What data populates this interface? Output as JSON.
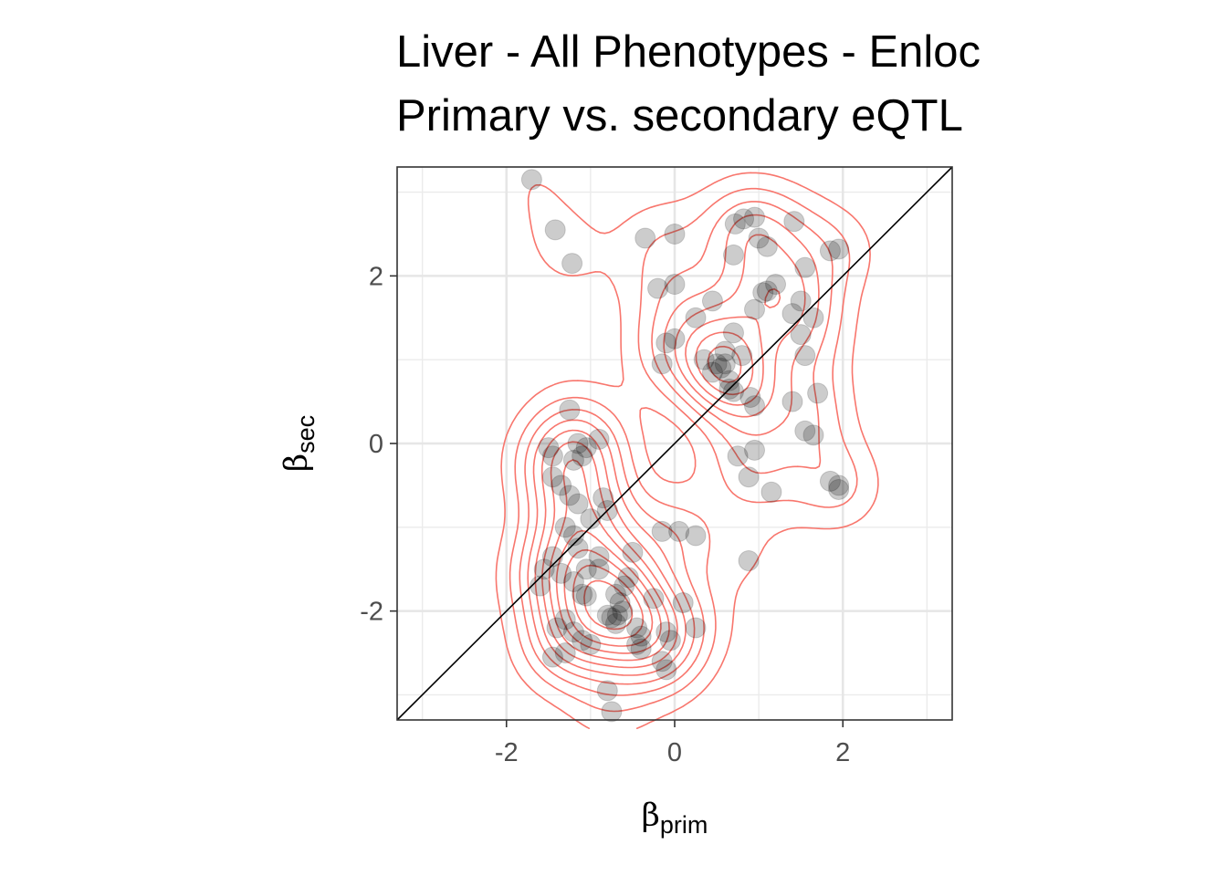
{
  "chart_data": {
    "type": "scatter",
    "title": [
      "Liver - All Phenotypes - Enloc",
      "Primary vs. secondary eQTL"
    ],
    "xlabel": {
      "symbol": "β",
      "subscript": "prim"
    },
    "ylabel": {
      "symbol": "β",
      "subscript": "sec"
    },
    "xlim": [
      -3.3,
      3.3
    ],
    "ylim": [
      -3.3,
      3.3
    ],
    "x_ticks": [
      -2,
      0,
      2
    ],
    "y_ticks": [
      -2,
      0,
      2
    ],
    "x_tick_labels": [
      "-2",
      "0",
      "2"
    ],
    "y_tick_labels": [
      "-2",
      "0",
      "2"
    ],
    "grid": true,
    "reference_line": {
      "type": "identity",
      "color": "#000000"
    },
    "point_color": "#000000",
    "point_opacity": 0.2,
    "contour_color": "#f8766d",
    "contour_overlay": "2D kernel density estimate of the points",
    "points": [
      [
        -1.7,
        3.15
      ],
      [
        -1.42,
        2.55
      ],
      [
        -1.22,
        2.15
      ],
      [
        -0.35,
        2.45
      ],
      [
        0.0,
        2.5
      ],
      [
        0.72,
        2.62
      ],
      [
        0.82,
        2.68
      ],
      [
        0.95,
        2.7
      ],
      [
        1.42,
        2.65
      ],
      [
        1.0,
        2.45
      ],
      [
        1.1,
        2.35
      ],
      [
        0.7,
        2.25
      ],
      [
        1.85,
        2.3
      ],
      [
        1.95,
        2.32
      ],
      [
        1.55,
        2.1
      ],
      [
        1.2,
        1.9
      ],
      [
        1.1,
        1.82
      ],
      [
        1.05,
        1.8
      ],
      [
        0.95,
        1.6
      ],
      [
        1.5,
        1.7
      ],
      [
        1.65,
        1.5
      ],
      [
        1.4,
        1.55
      ],
      [
        -0.2,
        1.85
      ],
      [
        0.0,
        1.9
      ],
      [
        0.25,
        1.5
      ],
      [
        0.45,
        1.7
      ],
      [
        0.7,
        1.32
      ],
      [
        0.6,
        1.1
      ],
      [
        0.8,
        1.05
      ],
      [
        0.0,
        1.25
      ],
      [
        -0.1,
        1.2
      ],
      [
        -0.15,
        0.95
      ],
      [
        0.35,
        1.0
      ],
      [
        0.5,
        0.95
      ],
      [
        0.55,
        0.9
      ],
      [
        0.6,
        0.95
      ],
      [
        0.45,
        0.85
      ],
      [
        0.65,
        0.75
      ],
      [
        0.65,
        0.65
      ],
      [
        0.7,
        0.62
      ],
      [
        0.9,
        0.55
      ],
      [
        0.95,
        0.45
      ],
      [
        1.55,
        1.05
      ],
      [
        1.5,
        1.3
      ],
      [
        1.4,
        0.5
      ],
      [
        1.55,
        0.15
      ],
      [
        1.65,
        0.1
      ],
      [
        1.7,
        0.6
      ],
      [
        1.85,
        -0.45
      ],
      [
        1.95,
        -0.5
      ],
      [
        1.95,
        -0.55
      ],
      [
        0.75,
        -0.15
      ],
      [
        0.95,
        -0.08
      ],
      [
        0.88,
        -0.4
      ],
      [
        1.15,
        -0.58
      ],
      [
        0.88,
        -1.4
      ],
      [
        -1.25,
        0.4
      ],
      [
        -1.5,
        -0.05
      ],
      [
        -1.45,
        -0.15
      ],
      [
        -1.15,
        0.0
      ],
      [
        -1.05,
        -0.05
      ],
      [
        -0.9,
        0.05
      ],
      [
        -1.1,
        -0.15
      ],
      [
        -1.2,
        -0.2
      ],
      [
        -1.45,
        -0.4
      ],
      [
        -1.35,
        -0.5
      ],
      [
        -1.25,
        -0.62
      ],
      [
        -1.15,
        -0.72
      ],
      [
        -0.85,
        -0.65
      ],
      [
        -0.8,
        -0.8
      ],
      [
        -1.0,
        -0.9
      ],
      [
        -1.3,
        -1.0
      ],
      [
        -1.2,
        -1.1
      ],
      [
        -1.15,
        -1.25
      ],
      [
        -1.45,
        -1.35
      ],
      [
        -1.55,
        -1.5
      ],
      [
        -1.35,
        -1.55
      ],
      [
        -1.2,
        -1.65
      ],
      [
        -1.05,
        -1.5
      ],
      [
        -0.9,
        -1.35
      ],
      [
        -0.9,
        -1.5
      ],
      [
        -0.5,
        -1.3
      ],
      [
        -0.55,
        -1.6
      ],
      [
        -0.6,
        -1.7
      ],
      [
        -1.6,
        -1.7
      ],
      [
        -1.1,
        -1.8
      ],
      [
        -1.05,
        -1.82
      ],
      [
        -0.7,
        -1.8
      ],
      [
        -0.65,
        -1.9
      ],
      [
        -0.62,
        -2.0
      ],
      [
        -0.68,
        -2.05
      ],
      [
        -0.75,
        -2.08
      ],
      [
        -0.7,
        -2.15
      ],
      [
        -0.8,
        -2.05
      ],
      [
        -0.15,
        -1.05
      ],
      [
        0.05,
        -1.05
      ],
      [
        0.25,
        -1.1
      ],
      [
        -0.25,
        -1.85
      ],
      [
        0.1,
        -1.9
      ],
      [
        0.25,
        -2.2
      ],
      [
        -0.1,
        -2.25
      ],
      [
        -1.4,
        -2.2
      ],
      [
        -1.3,
        -2.1
      ],
      [
        -1.2,
        -2.25
      ],
      [
        -1.1,
        -2.35
      ],
      [
        -1.0,
        -2.4
      ],
      [
        -0.45,
        -2.2
      ],
      [
        -0.4,
        -2.3
      ],
      [
        -0.45,
        -2.4
      ],
      [
        -0.4,
        -2.45
      ],
      [
        -0.05,
        -2.35
      ],
      [
        -0.15,
        -2.6
      ],
      [
        -0.1,
        -2.7
      ],
      [
        -1.45,
        -2.55
      ],
      [
        -1.3,
        -2.5
      ],
      [
        -0.8,
        -2.95
      ],
      [
        -0.75,
        -3.2
      ]
    ]
  }
}
